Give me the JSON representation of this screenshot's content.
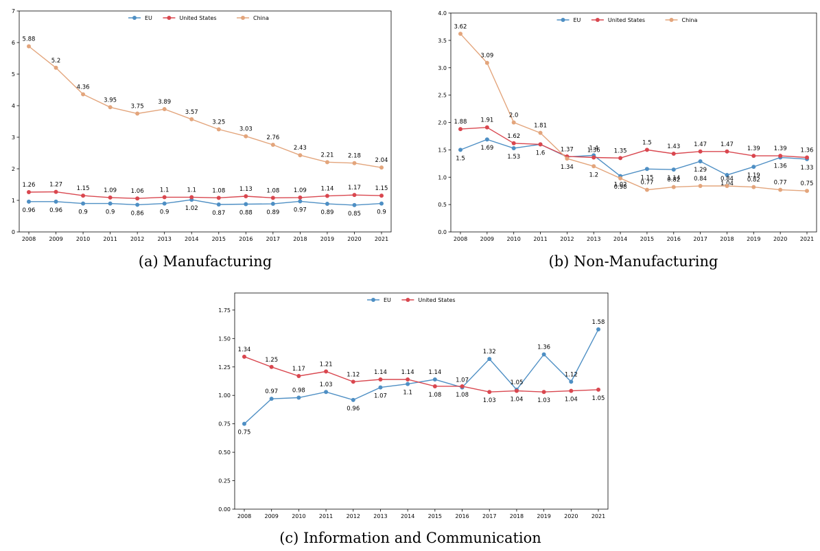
{
  "colors": {
    "EU": "#4e8fc4",
    "United States": "#d9474f",
    "China": "#e3a57c"
  },
  "chart_data": [
    {
      "type": "line",
      "caption": "(a) Manufacturing",
      "categories": [
        "2008",
        "2009",
        "2010",
        "2011",
        "2012",
        "2013",
        "2014",
        "2015",
        "2016",
        "2017",
        "2018",
        "2019",
        "2020",
        "2021"
      ],
      "ylim": [
        0,
        7
      ],
      "yticks": [
        "0",
        "1",
        "2",
        "3",
        "4",
        "5",
        "6",
        "7"
      ],
      "legend": "top-center",
      "series": [
        {
          "name": "EU",
          "values": [
            0.96,
            0.96,
            0.9,
            0.9,
            0.86,
            0.9,
            1.02,
            0.87,
            0.88,
            0.89,
            0.97,
            0.89,
            0.85,
            0.9
          ],
          "labels": [
            "0.96",
            "0.96",
            "0.9",
            "0.9",
            "0.86",
            "0.9",
            "1.02",
            "0.87",
            "0.88",
            "0.89",
            "0.97",
            "0.89",
            "0.85",
            "0.9"
          ]
        },
        {
          "name": "United States",
          "values": [
            1.26,
            1.27,
            1.15,
            1.09,
            1.06,
            1.1,
            1.1,
            1.08,
            1.13,
            1.08,
            1.09,
            1.14,
            1.17,
            1.15
          ],
          "labels": [
            "1.26",
            "1.27",
            "1.15",
            "1.09",
            "1.06",
            "1.1",
            "1.1",
            "1.08",
            "1.13",
            "1.08",
            "1.09",
            "1.14",
            "1.17",
            "1.15"
          ]
        },
        {
          "name": "China",
          "values": [
            5.88,
            5.2,
            4.36,
            3.95,
            3.75,
            3.89,
            3.57,
            3.25,
            3.03,
            2.76,
            2.43,
            2.21,
            2.18,
            2.04
          ],
          "labels": [
            "5.88",
            "5.2",
            "4.36",
            "3.95",
            "3.75",
            "3.89",
            "3.57",
            "3.25",
            "3.03",
            "2.76",
            "2.43",
            "2.21",
            "2.18",
            "2.04"
          ]
        }
      ]
    },
    {
      "type": "line",
      "caption": "(b) Non-Manufacturing",
      "categories": [
        "2008",
        "2009",
        "2010",
        "2011",
        "2012",
        "2013",
        "2014",
        "2015",
        "2016",
        "2017",
        "2018",
        "2019",
        "2020",
        "2021"
      ],
      "ylim": [
        0,
        4
      ],
      "yticks": [
        "0.0",
        "0.5",
        "1.0",
        "1.5",
        "2.0",
        "2.5",
        "3.0",
        "3.5",
        "4.0"
      ],
      "legend": "top-center",
      "series": [
        {
          "name": "EU",
          "values": [
            1.5,
            1.69,
            1.53,
            1.6,
            1.37,
            1.4,
            1.02,
            1.15,
            1.14,
            1.29,
            1.04,
            1.19,
            1.36,
            1.33
          ],
          "labels": [
            "1.5",
            "1.69",
            "1.53",
            "1.6",
            "1.37",
            "1.4",
            "1.02",
            "1.15",
            "1.14",
            "1.29",
            "1.04",
            "1.19",
            "1.36",
            "1.33"
          ]
        },
        {
          "name": "United States",
          "values": [
            1.88,
            1.91,
            1.62,
            1.6,
            1.38,
            1.36,
            1.35,
            1.5,
            1.43,
            1.47,
            1.47,
            1.39,
            1.39,
            1.36
          ],
          "labels": [
            "1.88",
            "1.91",
            "1.62",
            "",
            "",
            "1.36",
            "1.35",
            "1.5",
            "1.43",
            "1.47",
            "1.47",
            "1.39",
            "1.39",
            "1.36"
          ]
        },
        {
          "name": "China",
          "values": [
            3.62,
            3.09,
            2.0,
            1.81,
            1.34,
            1.2,
            0.98,
            0.77,
            0.82,
            0.84,
            0.84,
            0.82,
            0.77,
            0.75
          ],
          "labels": [
            "3.62",
            "3.09",
            "2.0",
            "1.81",
            "1.34",
            "1.2",
            "0.98",
            "0.77",
            "0.82",
            "0.84",
            "0.84",
            "0.82",
            "0.77",
            "0.75"
          ]
        }
      ]
    },
    {
      "type": "line",
      "caption": "(c) Information and Communication",
      "categories": [
        "2008",
        "2009",
        "2010",
        "2011",
        "2012",
        "2013",
        "2014",
        "2015",
        "2016",
        "2017",
        "2018",
        "2019",
        "2020",
        "2021"
      ],
      "ylim": [
        0,
        1.9
      ],
      "yticks": [
        "0.00",
        "0.25",
        "0.50",
        "0.75",
        "1.00",
        "1.25",
        "1.50",
        "1.75"
      ],
      "legend": "top-center",
      "series": [
        {
          "name": "EU",
          "values": [
            0.75,
            0.97,
            0.98,
            1.03,
            0.96,
            1.07,
            1.1,
            1.14,
            1.07,
            1.32,
            1.05,
            1.36,
            1.12,
            1.58
          ],
          "labels": [
            "0.75",
            "0.97",
            "0.98",
            "1.03",
            "0.96",
            "1.07",
            "1.1",
            "1.14",
            "1.07",
            "1.32",
            "1.05",
            "1.36",
            "1.12",
            "1.58"
          ]
        },
        {
          "name": "United States",
          "values": [
            1.34,
            1.25,
            1.17,
            1.21,
            1.12,
            1.14,
            1.14,
            1.08,
            1.08,
            1.03,
            1.04,
            1.03,
            1.04,
            1.05
          ],
          "labels": [
            "1.34",
            "1.25",
            "1.17",
            "1.21",
            "1.12",
            "1.14",
            "1.14",
            "1.08",
            "1.08",
            "1.03",
            "1.04",
            "1.03",
            "1.04",
            "1.05"
          ]
        }
      ]
    }
  ]
}
